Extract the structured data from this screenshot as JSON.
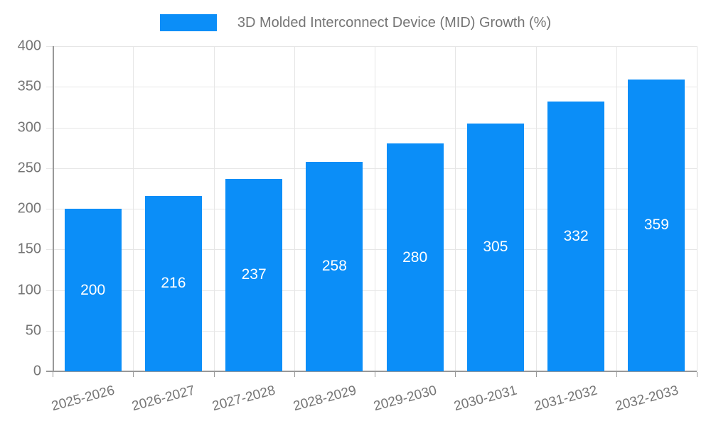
{
  "legend": {
    "label": "3D Molded Interconnect Device (MID) Growth (%)"
  },
  "colors": {
    "bar": "#0b8ef8",
    "grid": "#e6e6e6",
    "axis": "#999999",
    "tick_text": "#757575",
    "bar_label_text": "#ffffff"
  },
  "chart_data": {
    "type": "bar",
    "title": "3D Molded Interconnect Device (MID) Growth (%)",
    "categories": [
      "2025-2026",
      "2026-2027",
      "2027-2028",
      "2028-2029",
      "2029-2030",
      "2030-2031",
      "2031-2032",
      "2032-2033"
    ],
    "values": [
      200,
      216,
      237,
      258,
      280,
      305,
      332,
      359
    ],
    "xlabel": "",
    "ylabel": "",
    "ylim": [
      0,
      400
    ],
    "yticks": [
      0,
      50,
      100,
      150,
      200,
      250,
      300,
      350,
      400
    ],
    "grid": true,
    "legend_position": "top",
    "bar_labels_inside": true
  }
}
